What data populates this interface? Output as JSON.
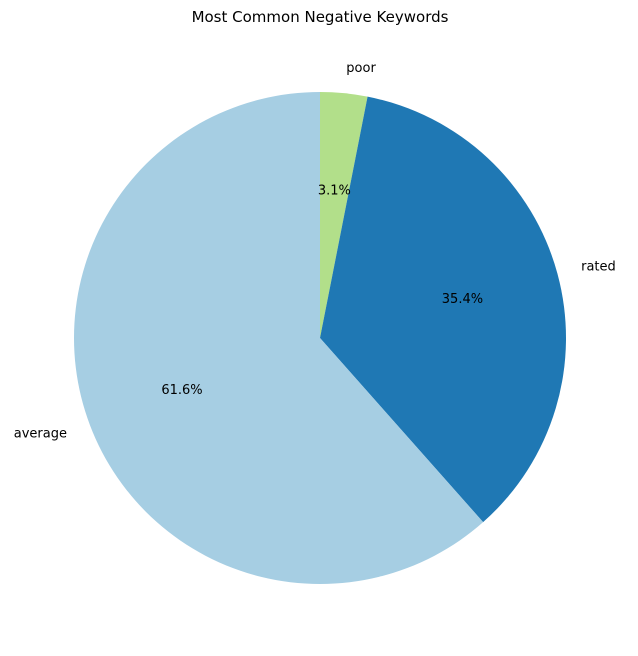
{
  "chart_data": {
    "type": "pie",
    "title": "Most Common Negative Keywords",
    "start_angle_deg": 90,
    "direction": "clockwise",
    "legend": "none",
    "slices": [
      {
        "label": "poor",
        "value": 3.1,
        "pct_label": "3.1%",
        "color": "#b2df8a"
      },
      {
        "label": "rated",
        "value": 35.4,
        "pct_label": "35.4%",
        "color": "#1f78b4"
      },
      {
        "label": "average",
        "value": 61.6,
        "pct_label": "61.6%",
        "color": "#a6cee3"
      }
    ]
  }
}
